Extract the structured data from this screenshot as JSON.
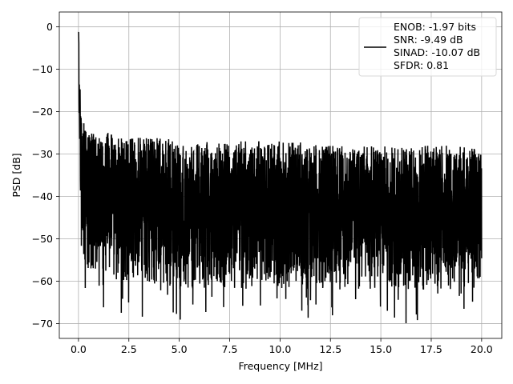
{
  "chart_data": {
    "type": "line",
    "title": "",
    "xlabel": "Frequency [MHz]",
    "ylabel": "PSD [dB]",
    "xlim": [
      -0.95,
      21.0
    ],
    "ylim": [
      -73.5,
      3.5
    ],
    "x_ticks": [
      0.0,
      2.5,
      5.0,
      7.5,
      10.0,
      12.5,
      15.0,
      17.5,
      20.0
    ],
    "x_tick_labels": [
      "0.0",
      "2.5",
      "5.0",
      "7.5",
      "10.0",
      "12.5",
      "15.0",
      "17.5",
      "20.0"
    ],
    "y_ticks": [
      0,
      -10,
      -20,
      -30,
      -40,
      -50,
      -60,
      -70
    ],
    "y_tick_labels": [
      "0",
      "−10",
      "−20",
      "−30",
      "−40",
      "−50",
      "−60",
      "−70"
    ],
    "grid": true,
    "legend_position": "top-right",
    "series": [
      {
        "color": "#000000",
        "legend_lines": [
          "ENOB: -1.97 bits",
          "SNR: -9.49 dB",
          "SINAD: -10.07 dB",
          "SFDR: 0.81"
        ],
        "x": [
          0.0,
          0.02,
          0.05,
          0.1,
          0.15,
          0.2,
          0.3,
          0.4,
          0.5,
          0.75,
          1.0,
          1.5,
          2.0,
          2.5,
          3.0,
          4.0,
          5.0,
          6.0,
          7.0,
          8.0,
          9.0,
          10.0,
          11.0,
          12.0,
          13.0,
          14.0,
          15.0,
          16.0,
          17.0,
          18.0,
          19.0,
          20.0
        ],
        "upper": [
          0,
          -2,
          -10,
          -15,
          -18,
          -22,
          -23,
          -24,
          -24,
          -25,
          -25,
          -25,
          -26,
          -26,
          -26,
          -26,
          -27,
          -27,
          -27,
          -27,
          -27,
          -27,
          -27,
          -28,
          -28,
          -28,
          -28,
          -28,
          -28,
          -28,
          -28,
          -29
        ],
        "lower": [
          -6,
          -20,
          -38,
          -45,
          -50,
          -55,
          -56,
          -58,
          -58,
          -58,
          -58,
          -59,
          -60,
          -60,
          -61,
          -61,
          -62,
          -62,
          -62,
          -62,
          -62,
          -62,
          -62,
          -62,
          -62,
          -62,
          -62,
          -62,
          -62,
          -62,
          -62,
          -62
        ]
      }
    ]
  }
}
